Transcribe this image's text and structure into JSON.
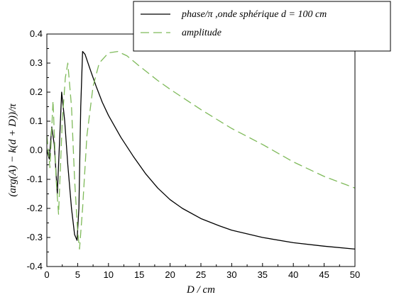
{
  "chart_data": {
    "type": "line",
    "xlabel": "D / cm",
    "ylabel": "(arg(A) − k(d + D))/π",
    "xlim": [
      0,
      50
    ],
    "ylim": [
      -0.4,
      0.4
    ],
    "x_ticks": [
      "0",
      "5",
      "10",
      "15",
      "20",
      "25",
      "30",
      "35",
      "40",
      "45",
      "50"
    ],
    "y_ticks": [
      "0.4",
      "0.3",
      "0.2",
      "0.1",
      "0.0",
      "-0.1",
      "-0.2",
      "-0.3",
      "-0.4"
    ],
    "grid": false,
    "legend_position": "top-right",
    "series": [
      {
        "name": "phase/π ,onde sphérique d = 100 cm",
        "color": "#000000",
        "dash": "solid",
        "points": [
          [
            0,
            0.0
          ],
          [
            0.4,
            -0.03
          ],
          [
            0.8,
            0.08
          ],
          [
            1.2,
            0.02
          ],
          [
            1.7,
            -0.15
          ],
          [
            2.0,
            0.0
          ],
          [
            2.4,
            0.2
          ],
          [
            2.9,
            0.1
          ],
          [
            3.4,
            -0.05
          ],
          [
            4.0,
            -0.2
          ],
          [
            4.5,
            -0.29
          ],
          [
            4.9,
            -0.31
          ],
          [
            5.2,
            -0.2
          ],
          [
            5.5,
            0.15
          ],
          [
            5.8,
            0.34
          ],
          [
            6.2,
            0.33
          ],
          [
            7,
            0.28
          ],
          [
            8,
            0.22
          ],
          [
            9,
            0.165
          ],
          [
            10,
            0.12
          ],
          [
            12,
            0.045
          ],
          [
            14,
            -0.02
          ],
          [
            16,
            -0.08
          ],
          [
            18,
            -0.13
          ],
          [
            20,
            -0.17
          ],
          [
            22,
            -0.2
          ],
          [
            25,
            -0.235
          ],
          [
            28,
            -0.26
          ],
          [
            30,
            -0.275
          ],
          [
            35,
            -0.3
          ],
          [
            40,
            -0.318
          ],
          [
            45,
            -0.33
          ],
          [
            50,
            -0.34
          ]
        ]
      },
      {
        "name": "amplitude",
        "color": "#7fba5a",
        "dash": "dashed",
        "points": [
          [
            0,
            0.05
          ],
          [
            0.5,
            -0.06
          ],
          [
            1.0,
            0.17
          ],
          [
            1.5,
            -0.1
          ],
          [
            1.9,
            -0.22
          ],
          [
            2.5,
            0.1
          ],
          [
            3.0,
            0.25
          ],
          [
            3.4,
            0.3
          ],
          [
            4.0,
            0.15
          ],
          [
            4.5,
            -0.1
          ],
          [
            5.0,
            -0.28
          ],
          [
            5.3,
            -0.34
          ],
          [
            5.8,
            -0.2
          ],
          [
            6.5,
            0.05
          ],
          [
            7.5,
            0.22
          ],
          [
            8.5,
            0.3
          ],
          [
            10,
            0.335
          ],
          [
            11.5,
            0.34
          ],
          [
            13,
            0.325
          ],
          [
            15,
            0.29
          ],
          [
            18,
            0.24
          ],
          [
            20,
            0.21
          ],
          [
            25,
            0.14
          ],
          [
            30,
            0.075
          ],
          [
            35,
            0.02
          ],
          [
            40,
            -0.04
          ],
          [
            45,
            -0.09
          ],
          [
            50,
            -0.13
          ]
        ]
      }
    ]
  }
}
